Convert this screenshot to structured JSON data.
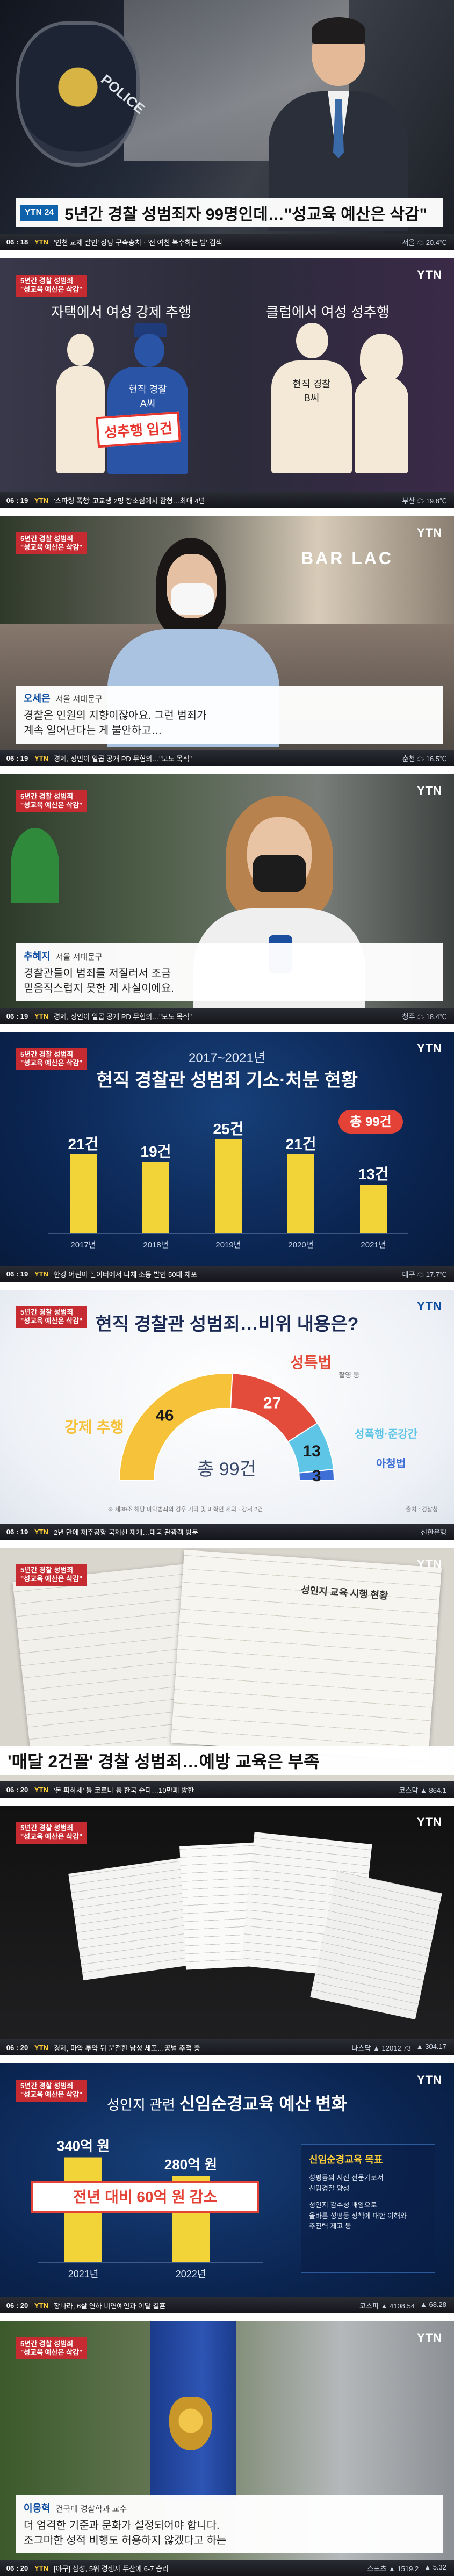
{
  "brand": "YTN",
  "corner_tag": "5년간 경찰 성범죄\n\"성교육 예산은 삭감\"",
  "frame1": {
    "headline": "5년간 경찰 성범죄자 99명인데…\"성교육 예산은 삭감\"",
    "badge": "YTN 24",
    "ticker_time": "06 : 18",
    "ticker_channel": "YTN",
    "ticker_text": "'인천 교제 살인' 상당 구속송치 · '전 여친 복수하는 법' 검색",
    "ticker_right": [
      "서울 ☁ 20.4℃"
    ],
    "patch_text": "POLICE"
  },
  "frame2": {
    "left_caption": "자택에서 여성 강제 추행",
    "left_caption_bold": "강제 추행",
    "right_caption": "클럽에서 여성 성추행",
    "right_caption_bold": "성추행",
    "officer_a": "현직 경찰\nA씨",
    "officer_b": "현직 경찰\nB씨",
    "stamp": "성추행 입건",
    "ticker_time": "06 : 19",
    "ticker_channel": "YTN",
    "ticker_text": "'스파링 폭행' 고교생 2명 항소심에서 감형…최대 4년",
    "ticker_right": [
      "부산 ☁ 19.8℃"
    ]
  },
  "frame3": {
    "name": "오세은",
    "place": "서울 서대문구",
    "quote": "경찰은 인원의 지향이잖아요. 그런 범죄가\n계속 일어난다는 게 불안하고…",
    "sign": "BAR LAC",
    "ticker_time": "06 : 19",
    "ticker_channel": "YTN",
    "ticker_text": "경제, 정인이 일곱 공개 PD 무혐의…\"보도 목적\"",
    "ticker_right": [
      "춘천 ☁ 16.5℃"
    ]
  },
  "frame4": {
    "name": "추혜지",
    "place": "서울 서대문구",
    "quote": "경찰관들이 범죄를 저질러서 조금\n믿음직스럽지 못한 게 사실이에요.",
    "ticker_time": "06 : 19",
    "ticker_channel": "YTN",
    "ticker_text": "경제, 정인이 일곱 공개 PD 무혐의…\"보도 목적\"",
    "ticker_right": [
      "청주 ☁ 18.4℃"
    ]
  },
  "frame5": {
    "period": "2017~2021년",
    "title": "현직 경찰관 성범죄 기소·처분 현황",
    "total": "총 99건",
    "ticker_time": "06 : 19",
    "ticker_channel": "YTN",
    "ticker_text": "한강 어린이 놀이터에서 나체 소동 발인 50대 체포",
    "ticker_right": [
      "대구 ☁ 17.7℃"
    ]
  },
  "chart_data": [
    {
      "type": "bar",
      "title": "현직 경찰관 성범죄 기소·처분 현황",
      "subtitle": "2017~2021년",
      "categories": [
        "2017년",
        "2018년",
        "2019년",
        "2020년",
        "2021년"
      ],
      "values": [
        21,
        19,
        25,
        21,
        13
      ],
      "value_labels": [
        "21건",
        "19건",
        "25건",
        "21건",
        "13건"
      ],
      "annotation": "총 99건",
      "color": "#f2d338",
      "ylim": [
        0,
        30
      ]
    },
    {
      "type": "pie",
      "title": "현직 경찰관 성범죄…비위 내용은?",
      "center_label": "총 99건",
      "labels": [
        "강제 추행",
        "성특법",
        "성폭행·준강간",
        "아청법"
      ],
      "sublabels": [
        "",
        "촬영 등",
        "",
        ""
      ],
      "values": [
        46,
        27,
        13,
        3
      ],
      "colors": [
        "#f6c23a",
        "#e34b3a",
        "#5ec5e6",
        "#3d6fd6"
      ],
      "note": "※ 제39조 해당 마약범죄의 경우 기타 및 미확인 제외 · 강서 2건",
      "source": "출처 : 경찰청"
    },
    {
      "type": "bar",
      "title": "성인지 관련 신임순경교육 예산 변화",
      "categories": [
        "2021년",
        "2022년"
      ],
      "values": [
        340,
        280
      ],
      "value_labels": [
        "340억 원",
        "280억 원"
      ],
      "annotation": "전년 대비 60억 원 감소",
      "color": "#f2d338",
      "ylim": [
        0,
        400
      ]
    }
  ],
  "frame6": {
    "title": "현직 경찰관 성범죄…비위 내용은?",
    "note": "※ 제39조 해당 마약범죄의 경우 기타 및 미확인 제외 · 강서 2건",
    "source": "출처 : 경찰청",
    "ticker_time": "06 : 19",
    "ticker_channel": "YTN",
    "ticker_text": "2년 만에 제주공항 국제선 재개…대국 관광객 방문",
    "ticker_right": [
      "신한은행"
    ]
  },
  "frame7": {
    "headline": "'매달 2건꼴' 경찰 성범죄…예방 교육은 부족",
    "doc_title": "성인지 교육 시행 현황",
    "ticker_time": "06 : 20",
    "ticker_channel": "YTN",
    "ticker_text": "'돈 피하세' 등 코로나 등 한국 순다…10만패 방한",
    "ticker_right": [
      "코스닥 ▲ 864.1"
    ]
  },
  "frame8": {
    "ticker_time": "06 : 20",
    "ticker_channel": "YTN",
    "ticker_text": "경제, 마약 투약 뒤 운전한 남성 체포…공범 추적 중",
    "ticker_right": [
      "나스닥 ▲ 12012.73",
      "▲ 304.17"
    ]
  },
  "frame9": {
    "title_prefix": "성인지 관련",
    "title_bold": "신임순경교육 예산 변화",
    "decrease": "전년 대비 60억 원 감소",
    "panel_title": "신임순경교육 목표",
    "panel_items": [
      "성평등의 지진 전문가로서\n신임경찰 양성",
      "성인지 감수성 배양으로\n올바른 성평등 정책에 대한 이해와\n추진력 제고 등"
    ],
    "ticker_time": "06 : 20",
    "ticker_channel": "YTN",
    "ticker_text": "장나라, 6살 연하 비연예인과 이달 결혼",
    "ticker_right": [
      "코스피 ▲ 4108.54",
      "▲ 68.28"
    ]
  },
  "frame10": {
    "name": "이웅혁",
    "place": "건국대 경찰학과 교수",
    "quote": "더 엄격한 기준과 문화가 설정되어야 합니다.\n조그마한 성적 비행도 허용하지 않겠다고 하는",
    "ticker_time": "06 : 20",
    "ticker_channel": "YTN",
    "ticker_text": "[야구] 삼성, 5위 경쟁자 두산에 6-7 승리",
    "ticker_right": [
      "스포츠 ▲ 1519.2",
      "▲ 5.32"
    ]
  }
}
